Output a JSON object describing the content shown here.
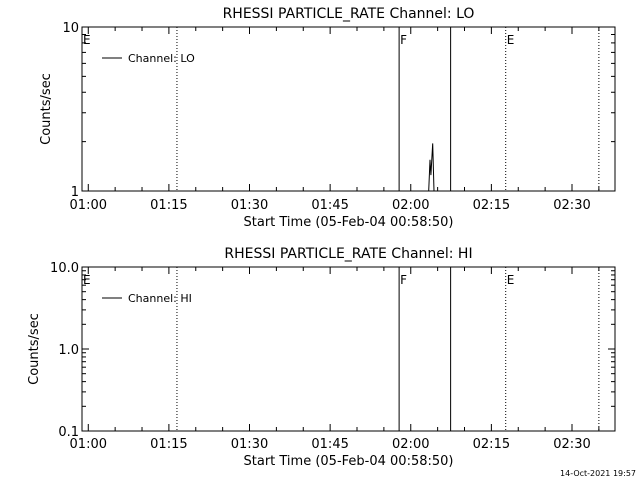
{
  "timestamp": "14-Oct-2021 19:57",
  "chart_data": [
    {
      "type": "line",
      "title": "RHESSI PARTICLE_RATE Channel: LO",
      "xlabel": "Start Time (05-Feb-04 00:58:50)",
      "ylabel": "Counts/sec",
      "yscale": "log",
      "xlim": [
        "00:58:50",
        "02:38:00"
      ],
      "ylim": [
        1,
        10
      ],
      "xticks": [
        "01:00",
        "01:15",
        "01:30",
        "01:45",
        "02:00",
        "02:15",
        "02:30"
      ],
      "yticks": [
        "1",
        "10"
      ],
      "legend": {
        "placement": "top-left",
        "label": "Channel: LO"
      },
      "series": [
        {
          "name": "Channel: LO",
          "x": [
            "02:03:20",
            "02:03:35",
            "02:03:45",
            "02:04:05",
            "02:04:20"
          ],
          "y": [
            1,
            1.55,
            1.25,
            1.95,
            1
          ]
        }
      ],
      "markers": [
        {
          "label": "E",
          "time": "00:58:50",
          "style": "none"
        },
        {
          "label": "",
          "time": "01:16:30",
          "style": "dotted"
        },
        {
          "label": "F",
          "time": "01:57:50",
          "style": "solid"
        },
        {
          "label": "",
          "time": "02:07:25",
          "style": "solid"
        },
        {
          "label": "E",
          "time": "02:17:40",
          "style": "dotted"
        },
        {
          "label": "",
          "time": "02:35:00",
          "style": "dotted"
        }
      ]
    },
    {
      "type": "line",
      "title": "RHESSI PARTICLE_RATE Channel: HI",
      "xlabel": "Start Time (05-Feb-04 00:58:50)",
      "ylabel": "Counts/sec",
      "yscale": "log",
      "xlim": [
        "00:58:50",
        "02:38:00"
      ],
      "ylim": [
        0.1,
        10
      ],
      "xticks": [
        "01:00",
        "01:15",
        "01:30",
        "01:45",
        "02:00",
        "02:15",
        "02:30"
      ],
      "yticks": [
        "0.1",
        "1.0",
        "10.0"
      ],
      "legend": {
        "placement": "top-left",
        "label": "Channel: HI"
      },
      "series": [
        {
          "name": "Channel: HI",
          "x": [],
          "y": []
        }
      ],
      "markers": [
        {
          "label": "E",
          "time": "00:58:50",
          "style": "none"
        },
        {
          "label": "",
          "time": "01:16:30",
          "style": "dotted"
        },
        {
          "label": "F",
          "time": "01:57:50",
          "style": "solid"
        },
        {
          "label": "",
          "time": "02:07:25",
          "style": "solid"
        },
        {
          "label": "E",
          "time": "02:17:40",
          "style": "dotted"
        },
        {
          "label": "",
          "time": "02:35:00",
          "style": "dotted"
        }
      ]
    }
  ]
}
